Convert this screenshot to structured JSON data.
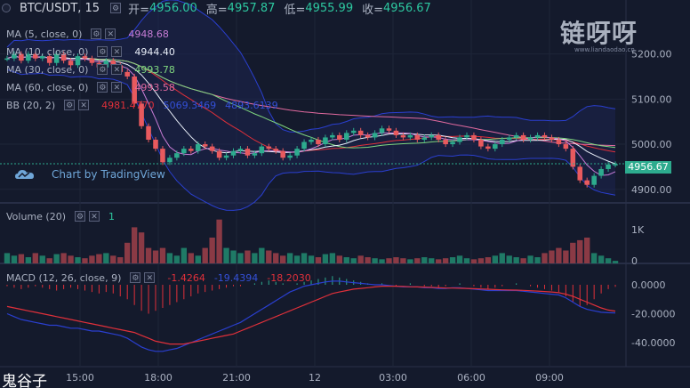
{
  "header": {
    "symbol": "BTC/USDT, 15",
    "open_label": "开=",
    "open": "4956.00",
    "high_label": "高=",
    "high": "4957.87",
    "low_label": "低=",
    "low": "4955.99",
    "close_label": "收=",
    "close": "4956.67"
  },
  "indicators": [
    {
      "label": "MA (5, close, 0)",
      "value": "4948.68",
      "color": "#c87dd6"
    },
    {
      "label": "MA (10, close, 0)",
      "value": "4944.40",
      "color": "#e8eef8"
    },
    {
      "label": "MA (30, close, 0)",
      "value": "4993.78",
      "color": "#7fd67f"
    },
    {
      "label": "MA (60, close, 0)",
      "value": "4993.58",
      "color": "#e26a9f"
    },
    {
      "label": "BB (20, 2)",
      "value": "4981.4770",
      "value2": "5069.3469",
      "value3": "4893.6139",
      "color": "#e0303a"
    }
  ],
  "volume": {
    "label": "Volume (20)",
    "value": "1"
  },
  "macd": {
    "label": "MACD (12, 26, close, 9)",
    "v1": "-1.4264",
    "v2": "-19.4394",
    "v3": "-18.2030"
  },
  "price_axis": [
    "5200.00",
    "5100.00",
    "5000.00",
    "4900.00"
  ],
  "current_price": "4956.67",
  "volume_axis": [
    "1K",
    "0"
  ],
  "macd_axis": [
    "0.0000",
    "-20.0000",
    "-40.0000"
  ],
  "time_axis": [
    "15:00",
    "18:00",
    "21:00",
    "12",
    "03:00",
    "06:00",
    "09:00"
  ],
  "watermark": "链呀呀",
  "watermark_sub": "www.liandaodao.cn",
  "tv_logo": "Chart by TradingView",
  "ghost_text": "鬼谷子",
  "colors": {
    "up": "#2dab8e",
    "down": "#e85a5e",
    "bg": "#141a2c"
  },
  "chart_data": {
    "type": "candlestick",
    "timeframe": "15",
    "ylim": [
      4870,
      5280
    ],
    "x": [
      "15:00",
      "18:00",
      "21:00",
      "12",
      "03:00",
      "06:00",
      "09:00"
    ],
    "close_series": [
      5190,
      5200,
      5185,
      5200,
      5190,
      5195,
      5180,
      5200,
      5185,
      5175,
      5195,
      5190,
      5180,
      5170,
      5185,
      5175,
      5160,
      5150,
      5090,
      5040,
      5010,
      4990,
      4960,
      4970,
      4980,
      4990,
      4985,
      5000,
      4995,
      4985,
      4970,
      4975,
      4985,
      4990,
      4975,
      4980,
      4995,
      4990,
      4985,
      4970,
      4975,
      4990,
      5005,
      5010,
      5000,
      5015,
      5020,
      5010,
      5025,
      5030,
      5020,
      5015,
      5025,
      5035,
      5030,
      5020,
      5015,
      5020,
      5010,
      5015,
      5020,
      5010,
      5000,
      5005,
      5015,
      5020,
      5010,
      4995,
      4990,
      5000,
      5010,
      5015,
      5020,
      5010,
      5015,
      5020,
      5015,
      5010,
      5000,
      4990,
      4950,
      4920,
      4910,
      4930,
      4945,
      4955,
      4956
    ],
    "volume_series": [
      0.2,
      0.15,
      0.18,
      0.12,
      0.2,
      0.15,
      0.1,
      0.18,
      0.2,
      0.15,
      0.12,
      0.1,
      0.15,
      0.18,
      0.2,
      0.15,
      0.12,
      0.4,
      0.7,
      0.6,
      0.3,
      0.25,
      0.3,
      0.2,
      0.15,
      0.3,
      0.2,
      0.15,
      0.3,
      0.5,
      0.85,
      0.3,
      0.25,
      0.2,
      0.25,
      0.2,
      0.3,
      0.25,
      0.2,
      0.15,
      0.2,
      0.15,
      0.2,
      0.15,
      0.12,
      0.18,
      0.2,
      0.15,
      0.12,
      0.1,
      0.15,
      0.12,
      0.1,
      0.08,
      0.1,
      0.12,
      0.1,
      0.08,
      0.1,
      0.12,
      0.1,
      0.08,
      0.1,
      0.12,
      0.15,
      0.1,
      0.08,
      0.1,
      0.12,
      0.15,
      0.2,
      0.15,
      0.12,
      0.1,
      0.15,
      0.12,
      0.2,
      0.25,
      0.3,
      0.25,
      0.4,
      0.45,
      0.5,
      0.2,
      0.15,
      0.1,
      0.05
    ],
    "macd_hist": [
      -1,
      -2,
      -3,
      -2,
      -1,
      -2,
      -3,
      -4,
      -3,
      -2,
      -3,
      -4,
      -5,
      -6,
      -5,
      -6,
      -8,
      -10,
      -14,
      -18,
      -20,
      -18,
      -16,
      -14,
      -12,
      -10,
      -8,
      -6,
      -5,
      -4,
      -3,
      -2,
      -1,
      -1,
      0,
      1,
      2,
      3,
      2,
      1,
      0,
      1,
      2,
      3,
      4,
      5,
      6,
      5,
      4,
      3,
      2,
      1,
      0,
      1,
      0,
      -1,
      0,
      1,
      0,
      -1,
      -1,
      -2,
      -1,
      0,
      1,
      0,
      -1,
      -2,
      -3,
      -2,
      -1,
      0,
      1,
      0,
      -1,
      -2,
      -3,
      -4,
      -5,
      -8,
      -12,
      -15,
      -14,
      -10,
      -6,
      -3,
      -1.4264
    ],
    "macd_line": [
      -20,
      -22,
      -24,
      -25,
      -26,
      -27,
      -28,
      -28,
      -29,
      -30,
      -30,
      -31,
      -32,
      -32,
      -33,
      -34,
      -35,
      -37,
      -40,
      -43,
      -45,
      -46,
      -46,
      -45,
      -44,
      -42,
      -40,
      -38,
      -36,
      -34,
      -32,
      -30,
      -28,
      -26,
      -23,
      -20,
      -17,
      -14,
      -11,
      -8,
      -5,
      -3,
      -1,
      0,
      1,
      2,
      2.5,
      2.5,
      2,
      1.5,
      1,
      0.5,
      0,
      0,
      -0.5,
      -1,
      -1.5,
      -1.5,
      -1.5,
      -2,
      -2,
      -2.5,
      -2.5,
      -2,
      -2,
      -2.5,
      -3,
      -3.5,
      -4,
      -4,
      -4,
      -4,
      -4,
      -4.5,
      -5,
      -5.5,
      -6,
      -6.5,
      -7,
      -9,
      -12,
      -15,
      -17,
      -18,
      -19,
      -19.3,
      -19.4394
    ],
    "signal_line": [
      -15,
      -16,
      -17,
      -18,
      -19,
      -20,
      -21,
      -22,
      -23,
      -24,
      -25,
      -26,
      -27,
      -28,
      -29,
      -30,
      -31,
      -32,
      -33,
      -35,
      -37,
      -39,
      -40,
      -41,
      -41,
      -41,
      -40,
      -39,
      -38,
      -37,
      -36,
      -35,
      -34,
      -32,
      -30,
      -28,
      -26,
      -24,
      -22,
      -20,
      -18,
      -16,
      -14,
      -12,
      -10,
      -8,
      -6,
      -5,
      -4,
      -3,
      -2.5,
      -2,
      -1.5,
      -1,
      -1,
      -1,
      -1.2,
      -1.4,
      -1.5,
      -1.6,
      -1.8,
      -2,
      -2.2,
      -2.3,
      -2.4,
      -2.5,
      -2.7,
      -2.9,
      -3.1,
      -3.3,
      -3.5,
      -3.6,
      -3.7,
      -3.9,
      -4.1,
      -4.4,
      -4.7,
      -5,
      -5.5,
      -6.5,
      -8,
      -10,
      -12,
      -14,
      -16,
      -17.5,
      -18.203
    ]
  }
}
